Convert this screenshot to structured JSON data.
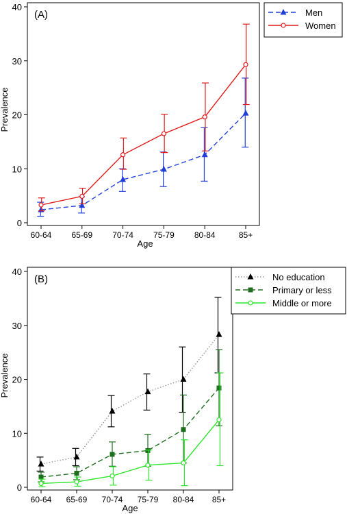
{
  "chart_data": [
    {
      "type": "line",
      "panel_label": "(A)",
      "xlabel": "Age",
      "ylabel": "Prevalence",
      "categories": [
        "60-64",
        "65-69",
        "70-74",
        "75-79",
        "80-84",
        "85+"
      ],
      "ylim": [
        0,
        40
      ],
      "yticks": [
        0,
        10,
        20,
        30,
        40
      ],
      "legend_position": "top-right (outside)",
      "series": [
        {
          "name": "Men",
          "values": [
            2.4,
            3.2,
            8.0,
            9.9,
            12.6,
            20.3
          ],
          "ci_low": [
            1.2,
            1.8,
            5.8,
            6.7,
            7.7,
            14.0
          ],
          "ci_high": [
            3.8,
            4.8,
            10.0,
            13.1,
            17.6,
            26.8
          ],
          "color": "#1f3fd8",
          "line_style": "dashed",
          "marker": "filled-triangle"
        },
        {
          "name": "Women",
          "values": [
            3.3,
            4.9,
            12.6,
            16.5,
            19.6,
            29.3
          ],
          "ci_low": [
            2.2,
            3.5,
            9.9,
            13.0,
            13.3,
            21.9
          ],
          "ci_high": [
            4.6,
            6.4,
            15.7,
            20.1,
            25.9,
            36.8
          ],
          "color": "#e01a1a",
          "line_style": "solid",
          "marker": "hollow-circle"
        }
      ]
    },
    {
      "type": "line",
      "panel_label": "(B)",
      "xlabel": "Age",
      "ylabel": "Prevalence",
      "categories": [
        "60-64",
        "65-69",
        "70-74",
        "75-79",
        "80-84",
        "85+"
      ],
      "ylim": [
        0,
        40
      ],
      "yticks": [
        0,
        10,
        20,
        30,
        40
      ],
      "legend_position": "top-right (outside)",
      "series": [
        {
          "name": "No education",
          "values": [
            4.3,
            5.6,
            14.1,
            17.7,
            20.0,
            28.3
          ],
          "ci_low": [
            3.0,
            4.0,
            11.2,
            14.3,
            13.9,
            21.2
          ],
          "ci_high": [
            5.6,
            7.2,
            17.0,
            21.0,
            26.0,
            35.2
          ],
          "color": "#000000",
          "line_style": "dotted",
          "line_color": "#999999",
          "marker": "filled-triangle"
        },
        {
          "name": "Primary or less",
          "values": [
            1.9,
            2.6,
            6.1,
            6.8,
            10.7,
            18.4
          ],
          "ci_low": [
            1.0,
            1.4,
            3.9,
            3.9,
            4.5,
            11.4
          ],
          "ci_high": [
            2.8,
            3.8,
            8.4,
            9.8,
            17.1,
            25.5
          ],
          "color": "#1e6e1e",
          "line_style": "dashed",
          "marker": "filled-square"
        },
        {
          "name": "Middle or more",
          "values": [
            0.7,
            1.0,
            2.1,
            4.1,
            4.5,
            12.5
          ],
          "ci_low": [
            0.1,
            0.2,
            0.4,
            1.3,
            0.3,
            4.0
          ],
          "ci_high": [
            1.5,
            1.9,
            3.8,
            6.9,
            8.8,
            21.2
          ],
          "color": "#2ee62e",
          "line_style": "solid",
          "marker": "hollow-circle"
        }
      ]
    }
  ]
}
